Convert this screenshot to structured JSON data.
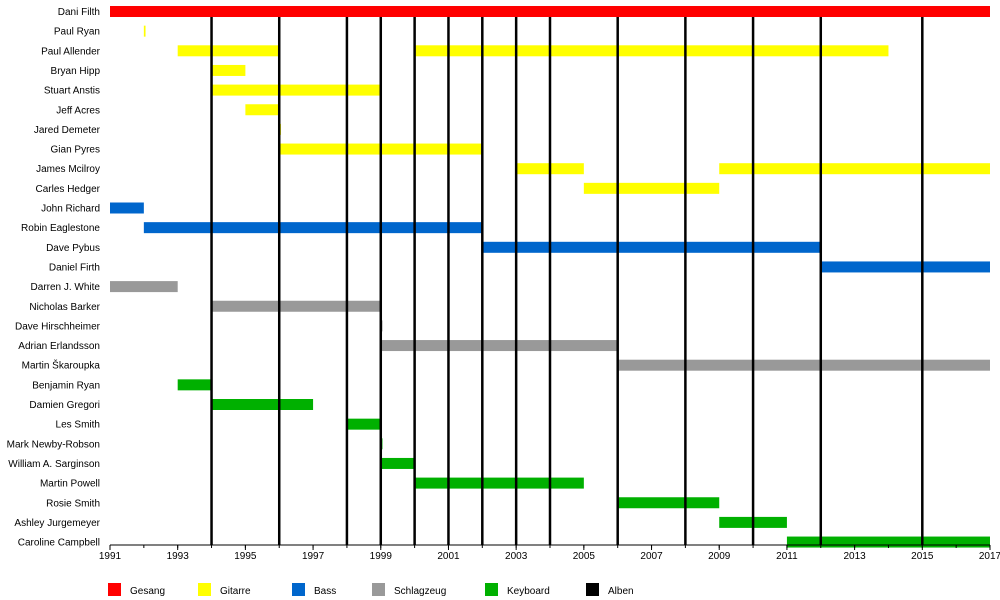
{
  "chart_data": {
    "type": "timeline",
    "xlim": [
      1991,
      2017
    ],
    "x_ticks": [
      1991,
      1993,
      1995,
      1997,
      1999,
      2001,
      2003,
      2005,
      2007,
      2009,
      2011,
      2013,
      2015,
      2017
    ],
    "minor_ticks_every": 1,
    "roles": [
      {
        "key": "vocals",
        "label": "Gesang",
        "color": "#ff0000"
      },
      {
        "key": "guitar",
        "label": "Gitarre",
        "color": "#ffff00"
      },
      {
        "key": "bass",
        "label": "Bass",
        "color": "#0066cc"
      },
      {
        "key": "drums",
        "label": "Schlagzeug",
        "color": "#999999"
      },
      {
        "key": "keys",
        "label": "Keyboard",
        "color": "#00b000"
      },
      {
        "key": "albums",
        "label": "Alben",
        "color": "#000000"
      }
    ],
    "albums": [
      1994,
      1996,
      1998,
      1999,
      2000,
      2001,
      2002,
      2003,
      2004,
      2006,
      2008,
      2010,
      2012,
      2015
    ],
    "members": [
      {
        "name": "Dani Filth",
        "role": "vocals",
        "periods": [
          [
            1991,
            2017
          ]
        ]
      },
      {
        "name": "Paul Ryan",
        "role": "guitar",
        "periods": [
          [
            1992,
            1992.05
          ]
        ]
      },
      {
        "name": "Paul Allender",
        "role": "guitar",
        "periods": [
          [
            1993,
            1996
          ],
          [
            2000,
            2014
          ]
        ]
      },
      {
        "name": "Bryan Hipp",
        "role": "guitar",
        "periods": [
          [
            1994,
            1995
          ]
        ]
      },
      {
        "name": "Stuart Anstis",
        "role": "guitar",
        "periods": [
          [
            1994,
            1999
          ]
        ]
      },
      {
        "name": "Jeff Acres",
        "role": "guitar",
        "periods": [
          [
            1995,
            1996
          ]
        ]
      },
      {
        "name": "Jared Demeter",
        "role": "guitar",
        "periods": [
          [
            1996,
            1996.05
          ]
        ]
      },
      {
        "name": "Gian Pyres",
        "role": "guitar",
        "periods": [
          [
            1996,
            2002
          ]
        ]
      },
      {
        "name": "James Mcilroy",
        "role": "guitar",
        "periods": [
          [
            2003,
            2005
          ],
          [
            2009,
            2017
          ]
        ]
      },
      {
        "name": "Carles Hedger",
        "role": "guitar",
        "periods": [
          [
            2005,
            2009
          ]
        ]
      },
      {
        "name": "John Richard",
        "role": "bass",
        "periods": [
          [
            1991,
            1992
          ]
        ]
      },
      {
        "name": "Robin Eaglestone",
        "role": "bass",
        "periods": [
          [
            1992,
            2002
          ]
        ]
      },
      {
        "name": "Dave Pybus",
        "role": "bass",
        "periods": [
          [
            2002,
            2012
          ]
        ]
      },
      {
        "name": "Daniel Firth",
        "role": "bass",
        "periods": [
          [
            2012,
            2017
          ]
        ]
      },
      {
        "name": "Darren J. White",
        "role": "drums",
        "periods": [
          [
            1991,
            1993
          ]
        ]
      },
      {
        "name": "Nicholas Barker",
        "role": "drums",
        "periods": [
          [
            1994,
            1999
          ]
        ]
      },
      {
        "name": "Dave Hirschheimer",
        "role": "drums",
        "periods": [
          [
            1999,
            1999.05
          ]
        ]
      },
      {
        "name": "Adrian Erlandsson",
        "role": "drums",
        "periods": [
          [
            1999,
            2006
          ]
        ]
      },
      {
        "name": "Martin Škaroupka",
        "role": "drums",
        "periods": [
          [
            2006,
            2017
          ]
        ]
      },
      {
        "name": "Benjamin Ryan",
        "role": "keys",
        "periods": [
          [
            1993,
            1994
          ]
        ]
      },
      {
        "name": "Damien Gregori",
        "role": "keys",
        "periods": [
          [
            1994,
            1997
          ]
        ]
      },
      {
        "name": "Les Smith",
        "role": "keys",
        "periods": [
          [
            1998,
            1999
          ]
        ]
      },
      {
        "name": "Mark Newby-Robson",
        "role": "keys",
        "periods": [
          [
            1999,
            1999.05
          ]
        ]
      },
      {
        "name": "William A. Sarginson",
        "role": "keys",
        "periods": [
          [
            1999,
            2000
          ]
        ]
      },
      {
        "name": "Martin Powell",
        "role": "keys",
        "periods": [
          [
            2000,
            2005
          ]
        ]
      },
      {
        "name": "Rosie Smith",
        "role": "keys",
        "periods": [
          [
            2006,
            2009
          ]
        ]
      },
      {
        "name": "Ashley Jurgemeyer",
        "role": "keys",
        "periods": [
          [
            2009,
            2011
          ]
        ]
      },
      {
        "name": "Caroline Campbell",
        "role": "keys",
        "periods": [
          [
            2011,
            2017
          ]
        ]
      }
    ]
  }
}
